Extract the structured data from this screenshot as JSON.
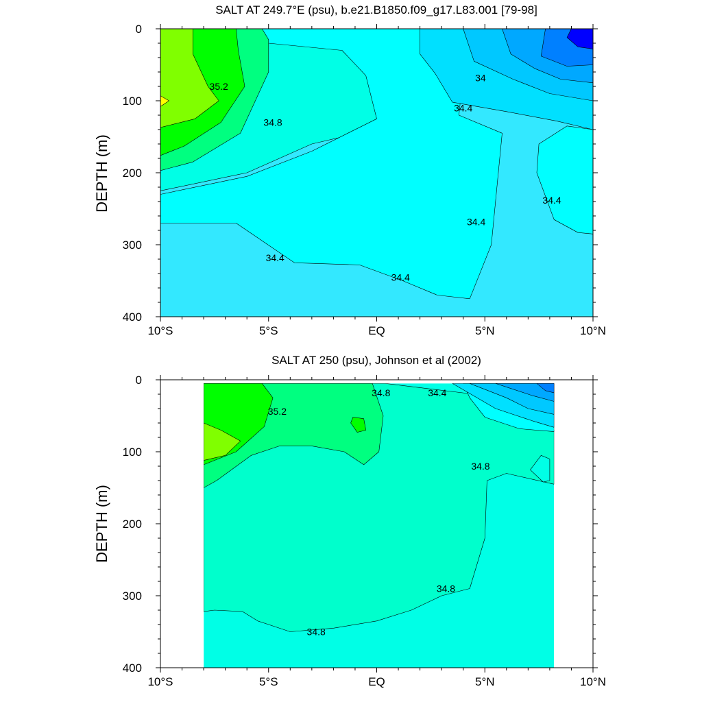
{
  "chart_data": [
    {
      "type": "contour",
      "title": "SALT AT 249.7°E (psu), b.e21.B1850.f09_g17.L83.001 [79-98]",
      "ylabel": "DEPTH (m)",
      "xlabel": "",
      "xlim": [
        -10,
        10
      ],
      "ylim": [
        0,
        400
      ],
      "y_reversed": true,
      "xticks": [
        {
          "value": -10,
          "label": "10°S"
        },
        {
          "value": -5,
          "label": "5°S"
        },
        {
          "value": 0,
          "label": "EQ"
        },
        {
          "value": 5,
          "label": "5°N"
        },
        {
          "value": 10,
          "label": "10°N"
        }
      ],
      "yticks": [
        0,
        100,
        200,
        300,
        400
      ],
      "background_color": "#33e8ff",
      "regions": [
        {
          "color": "#00ffe6",
          "points": [
            [
              -10,
              0
            ],
            [
              2,
              0
            ],
            [
              2,
              125
            ],
            [
              -3,
              160
            ],
            [
              -6,
              200
            ],
            [
              -10,
              225
            ]
          ]
        },
        {
          "color": "#00ffff",
          "points": [
            [
              -5.5,
              0
            ],
            [
              4.2,
              0
            ],
            [
              4.2,
              5
            ],
            [
              3.8,
              120
            ],
            [
              5.8,
              145
            ],
            [
              5.3,
              300
            ],
            [
              4.3,
              375
            ],
            [
              2.8,
              370
            ],
            [
              1.2,
              350
            ],
            [
              -0.8,
              328
            ],
            [
              -3.8,
              325
            ],
            [
              -6.5,
              270
            ],
            [
              -10,
              270
            ],
            [
              -10,
              230
            ],
            [
              -6,
              205
            ],
            [
              -3,
              170
            ],
            [
              0,
              125
            ],
            [
              -0.5,
              65
            ],
            [
              -1.6,
              30
            ],
            [
              -5,
              20
            ]
          ]
        },
        {
          "color": "#00ff80",
          "points": [
            [
              -10,
              0
            ],
            [
              -5.3,
              0
            ],
            [
              -5,
              15
            ],
            [
              -5,
              60
            ],
            [
              -6.3,
              145
            ],
            [
              -8.5,
              185
            ],
            [
              -10,
              197
            ]
          ]
        },
        {
          "color": "#00ff00",
          "points": [
            [
              -10,
              0
            ],
            [
              -6.5,
              0
            ],
            [
              -6.4,
              30
            ],
            [
              -6.1,
              80
            ],
            [
              -7.2,
              130
            ],
            [
              -8.9,
              163
            ],
            [
              -10,
              176
            ]
          ]
        },
        {
          "color": "#80ff00",
          "points": [
            [
              -10,
              0
            ],
            [
              -8.5,
              0
            ],
            [
              -8.5,
              35
            ],
            [
              -7.8,
              80
            ],
            [
              -7.3,
              100
            ],
            [
              -8.4,
              125
            ],
            [
              -10,
              137
            ]
          ]
        },
        {
          "color": "#ffff00",
          "points": [
            [
              -10,
              93
            ],
            [
              -9.6,
              100
            ],
            [
              -10,
              108
            ]
          ]
        },
        {
          "color": "#00e0ff",
          "points": [
            [
              2,
              0
            ],
            [
              10,
              0
            ],
            [
              10,
              140
            ],
            [
              8.3,
              128
            ],
            [
              6,
              115
            ],
            [
              3.5,
              102
            ],
            [
              2.7,
              62
            ],
            [
              2,
              35
            ]
          ]
        },
        {
          "color": "#00ffff",
          "points": [
            [
              10,
              140
            ],
            [
              8.8,
              135
            ],
            [
              7.5,
              160
            ],
            [
              7.4,
              200
            ],
            [
              8.2,
              265
            ],
            [
              9.3,
              283
            ],
            [
              10,
              285
            ]
          ]
        },
        {
          "color": "#00c8ff",
          "points": [
            [
              4,
              0
            ],
            [
              10,
              0
            ],
            [
              10,
              100
            ],
            [
              8,
              90
            ],
            [
              6.3,
              70
            ],
            [
              4.5,
              45
            ]
          ]
        },
        {
          "color": "#00a8ff",
          "points": [
            [
              5.8,
              0
            ],
            [
              10,
              0
            ],
            [
              10,
              75
            ],
            [
              8.5,
              70
            ],
            [
              7.3,
              55
            ],
            [
              6.2,
              35
            ]
          ]
        },
        {
          "color": "#0080ff",
          "points": [
            [
              7.8,
              0
            ],
            [
              10,
              0
            ],
            [
              10,
              50
            ],
            [
              8.8,
              52
            ],
            [
              7.6,
              38
            ]
          ]
        },
        {
          "color": "#0000ff",
          "points": [
            [
              9,
              0
            ],
            [
              10,
              0
            ],
            [
              10,
              28
            ],
            [
              9.3,
              25
            ],
            [
              8.8,
              12
            ]
          ]
        }
      ],
      "contours": [
        {
          "label": "35.2",
          "label_at": [
            -7.3,
            80
          ]
        },
        {
          "label": "34.8",
          "label_at": [
            -4.8,
            130
          ]
        },
        {
          "label": "34.4",
          "label_at": [
            4,
            110
          ]
        },
        {
          "label": "34",
          "label_at": [
            4.8,
            68
          ]
        },
        {
          "label": "34.4",
          "label_at": [
            4.6,
            268
          ]
        },
        {
          "label": "34.4",
          "label_at": [
            8.1,
            238
          ]
        },
        {
          "label": "34.4",
          "label_at": [
            -4.7,
            318
          ]
        },
        {
          "label": "34.4",
          "label_at": [
            1.1,
            345
          ]
        }
      ]
    },
    {
      "type": "contour",
      "title": "SALT AT 250 (psu), Johnson et al (2002)",
      "ylabel": "DEPTH (m)",
      "xlabel": "",
      "xlim": [
        -10,
        10
      ],
      "ylim": [
        0,
        400
      ],
      "y_reversed": true,
      "data_xlim": [
        -8,
        8.2
      ],
      "data_ylim": [
        5,
        400
      ],
      "xticks": [
        {
          "value": -10,
          "label": "10°S"
        },
        {
          "value": -5,
          "label": "5°S"
        },
        {
          "value": 0,
          "label": "EQ"
        },
        {
          "value": 5,
          "label": "5°N"
        },
        {
          "value": 10,
          "label": "10°N"
        }
      ],
      "yticks": [
        0,
        100,
        200,
        300,
        400
      ],
      "background_color": "#00ffe6",
      "regions": [
        {
          "color": "#00ffcc",
          "points": [
            [
              -8,
              5
            ],
            [
              0.4,
              5
            ],
            [
              4.5,
              20
            ],
            [
              5.8,
              55
            ],
            [
              8.2,
              70
            ],
            [
              8.2,
              145
            ],
            [
              6,
              130
            ],
            [
              5.1,
              140
            ],
            [
              5,
              220
            ],
            [
              4.3,
              290
            ],
            [
              3,
              300
            ],
            [
              1.6,
              320
            ],
            [
              0,
              335
            ],
            [
              -2,
              345
            ],
            [
              -4,
              350
            ],
            [
              -5.5,
              335
            ],
            [
              -6.2,
              322
            ],
            [
              -7.5,
              320
            ],
            [
              -8,
              322
            ]
          ]
        },
        {
          "color": "#00ff80",
          "points": [
            [
              -8,
              5
            ],
            [
              -0.2,
              5
            ],
            [
              0.3,
              50
            ],
            [
              0.1,
              100
            ],
            [
              -0.6,
              118
            ],
            [
              -1.5,
              100
            ],
            [
              -3,
              92
            ],
            [
              -4.5,
              92
            ],
            [
              -5.8,
              105
            ],
            [
              -7.4,
              140
            ],
            [
              -8,
              150
            ]
          ]
        },
        {
          "color": "#00ff00",
          "points": [
            [
              -8,
              5
            ],
            [
              -5.3,
              5
            ],
            [
              -4.8,
              25
            ],
            [
              -5.2,
              65
            ],
            [
              -6.5,
              100
            ],
            [
              -8,
              118
            ]
          ]
        },
        {
          "color": "#80ff00",
          "points": [
            [
              -8,
              60
            ],
            [
              -7.2,
              70
            ],
            [
              -6.3,
              85
            ],
            [
              -7,
              105
            ],
            [
              -8,
              112
            ]
          ]
        },
        {
          "color": "#00ff00",
          "points": [
            [
              -1.1,
              52
            ],
            [
              -0.6,
              54
            ],
            [
              -0.5,
              70
            ],
            [
              -0.9,
              73
            ],
            [
              -1.2,
              60
            ]
          ]
        },
        {
          "color": "#00ffff",
          "points": [
            [
              4,
              5
            ],
            [
              8.2,
              5
            ],
            [
              8.2,
              72
            ],
            [
              6.6,
              68
            ],
            [
              5,
              52
            ],
            [
              4.3,
              25
            ]
          ]
        },
        {
          "color": "#00ffe6",
          "points": [
            [
              7.6,
              105
            ],
            [
              8,
              110
            ],
            [
              8,
              140
            ],
            [
              7.7,
              142
            ],
            [
              7.1,
              125
            ]
          ]
        },
        {
          "color": "#00e0ff",
          "points": [
            [
              3.5,
              5
            ],
            [
              8.2,
              5
            ],
            [
              8.2,
              66
            ],
            [
              7.2,
              57
            ],
            [
              5.5,
              40
            ]
          ]
        },
        {
          "color": "#00c8ff",
          "points": [
            [
              4.3,
              5
            ],
            [
              8.2,
              5
            ],
            [
              8.2,
              48
            ],
            [
              7,
              40
            ],
            [
              6,
              25
            ]
          ]
        },
        {
          "color": "#00a8ff",
          "points": [
            [
              5.5,
              5
            ],
            [
              8.2,
              5
            ],
            [
              8.2,
              30
            ],
            [
              7.2,
              22
            ]
          ]
        },
        {
          "color": "#0080ff",
          "points": [
            [
              7.4,
              5
            ],
            [
              8.2,
              5
            ],
            [
              8.2,
              18
            ],
            [
              7.8,
              15
            ]
          ]
        }
      ],
      "contours": [
        {
          "label": "35.2",
          "label_at": [
            -4.6,
            44
          ]
        },
        {
          "label": "34.8",
          "label_at": [
            0.2,
            18
          ]
        },
        {
          "label": "34.4",
          "label_at": [
            2.8,
            18
          ]
        },
        {
          "label": "34.8",
          "label_at": [
            4.8,
            120
          ]
        },
        {
          "label": "34.8",
          "label_at": [
            3.2,
            290
          ]
        },
        {
          "label": "34.8",
          "label_at": [
            -2.8,
            350
          ]
        }
      ]
    }
  ]
}
